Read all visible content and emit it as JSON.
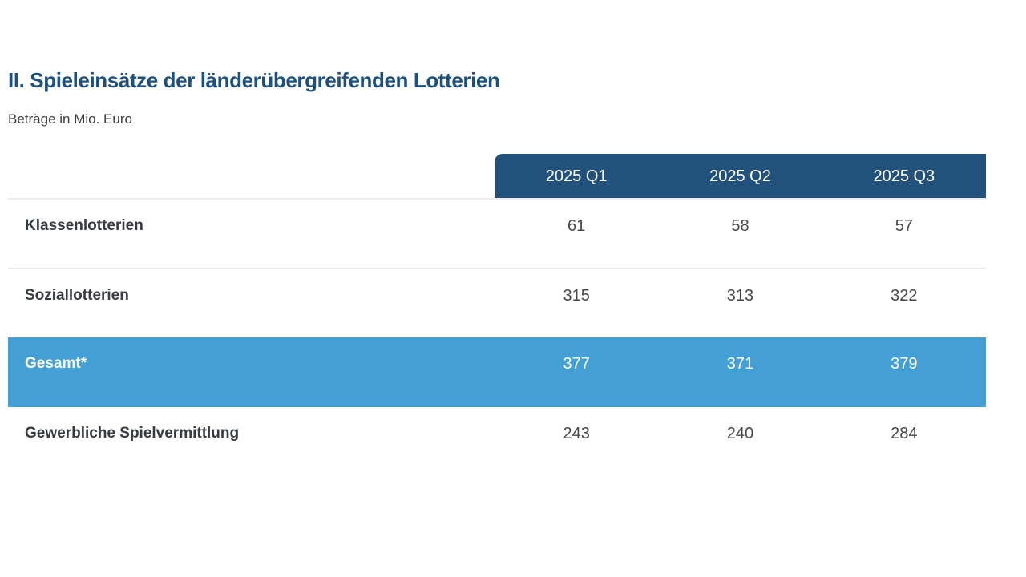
{
  "title": "II. Spieleinsätze der länderübergreifenden Lotterien",
  "subtitle": "Beträge in Mio. Euro",
  "table": {
    "columns": [
      "2025 Q1",
      "2025 Q2",
      "2025 Q3"
    ],
    "rows": [
      {
        "label": "Klassenlotterien",
        "values": [
          "61",
          "58",
          "57"
        ],
        "highlight": false
      },
      {
        "label": "Soziallotterien",
        "values": [
          "315",
          "313",
          "322"
        ],
        "highlight": false
      },
      {
        "label": "Gesamt*",
        "values": [
          "377",
          "371",
          "379"
        ],
        "highlight": true
      },
      {
        "label": "Gewerbliche Spielvermittlung",
        "values": [
          "243",
          "240",
          "284"
        ],
        "highlight": false
      }
    ]
  },
  "chart_data": {
    "type": "table",
    "title": "II. Spieleinsätze der länderübergreifenden Lotterien",
    "subtitle": "Beträge in Mio. Euro",
    "categories": [
      "2025 Q1",
      "2025 Q2",
      "2025 Q3"
    ],
    "series": [
      {
        "name": "Klassenlotterien",
        "values": [
          61,
          58,
          57
        ]
      },
      {
        "name": "Soziallotterien",
        "values": [
          315,
          313,
          322
        ]
      },
      {
        "name": "Gesamt*",
        "values": [
          377,
          371,
          379
        ]
      },
      {
        "name": "Gewerbliche Spielvermittlung",
        "values": [
          243,
          240,
          284
        ]
      }
    ]
  },
  "colors": {
    "title_color": "#1d507f",
    "subtitle_color": "#3e3e3e",
    "header_bg": "#22527b",
    "header_text": "#ffffff",
    "highlight_bg": "#449fd4",
    "highlight_text": "#ffffff",
    "label_text": "#383c42",
    "value_text": "#46494c",
    "divider_color": "#ececec"
  }
}
